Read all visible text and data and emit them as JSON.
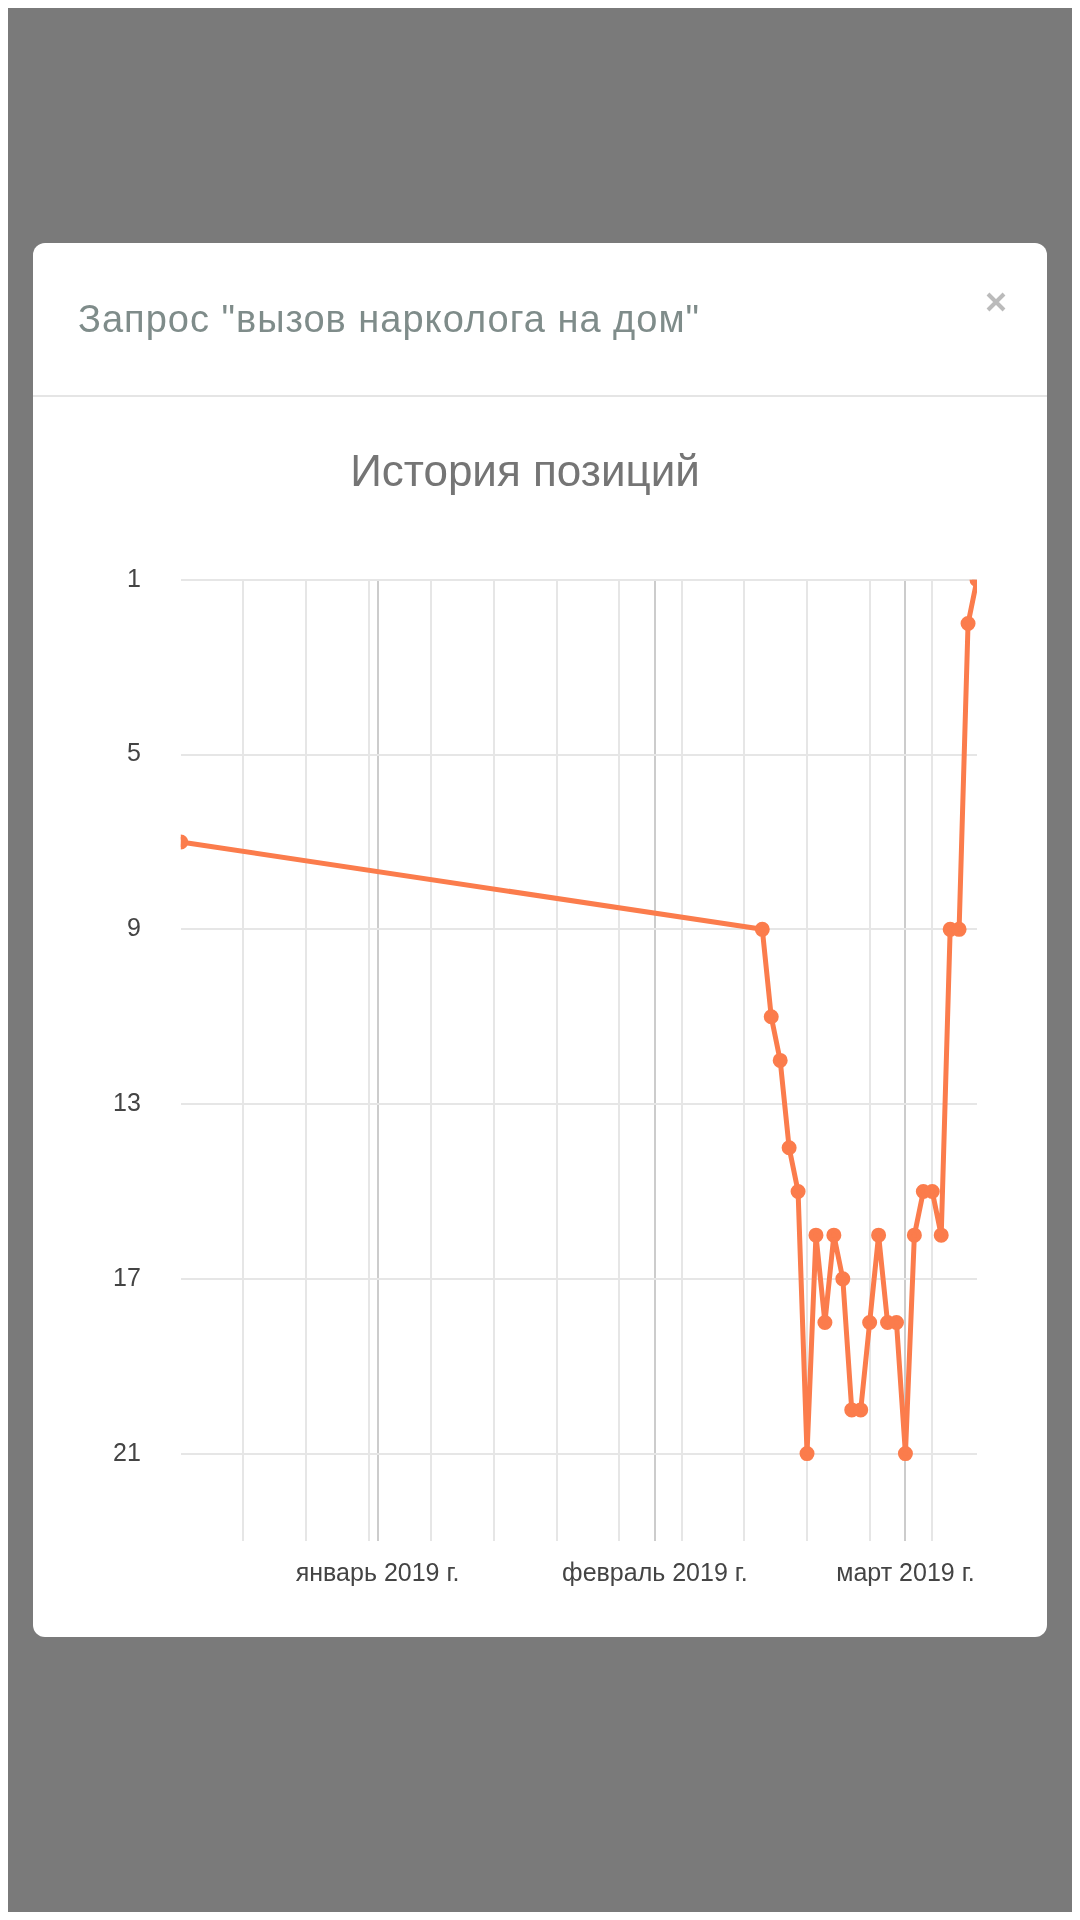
{
  "chart_data": {
    "type": "line",
    "title": "История позиций",
    "subtitle": "Запрос \"вызов нарколога на дом\"",
    "x": [
      "2018-12-10",
      "2019-02-13",
      "2019-02-14",
      "2019-02-15",
      "2019-02-16",
      "2019-02-17",
      "2019-02-18",
      "2019-02-19",
      "2019-02-20",
      "2019-02-21",
      "2019-02-22",
      "2019-02-23",
      "2019-02-24",
      "2019-02-25",
      "2019-02-26",
      "2019-02-27",
      "2019-02-28",
      "2019-03-01",
      "2019-03-02",
      "2019-03-03",
      "2019-03-04",
      "2019-03-05",
      "2019-03-06",
      "2019-03-07",
      "2019-03-08",
      "2019-03-09"
    ],
    "values": [
      7,
      9,
      11,
      12,
      14,
      15,
      21,
      16,
      18,
      16,
      17,
      20,
      20,
      18,
      16,
      18,
      18,
      21,
      16,
      15,
      15,
      16,
      9,
      9,
      2,
      1
    ],
    "color": "#fb7c4c",
    "marker": "circle",
    "line_style": "solid",
    "xlim": [
      "2018-12-10",
      "2019-03-09"
    ],
    "xticks": [
      {
        "value": "2018-12-17",
        "label": null
      },
      {
        "value": "2018-12-24",
        "label": null
      },
      {
        "value": "2018-12-31",
        "label": null
      },
      {
        "value": "2019-01-01",
        "label": "январь 2019 г."
      },
      {
        "value": "2019-01-07",
        "label": null
      },
      {
        "value": "2019-01-14",
        "label": null
      },
      {
        "value": "2019-01-21",
        "label": null
      },
      {
        "value": "2019-01-28",
        "label": null
      },
      {
        "value": "2019-02-01",
        "label": "февраль 2019 г."
      },
      {
        "value": "2019-02-04",
        "label": null
      },
      {
        "value": "2019-02-11",
        "label": null
      },
      {
        "value": "2019-02-18",
        "label": null
      },
      {
        "value": "2019-02-25",
        "label": null
      },
      {
        "value": "2019-03-01",
        "label": "март 2019 г."
      },
      {
        "value": "2019-03-04",
        "label": null
      }
    ],
    "ylim": [
      23,
      1
    ],
    "yticks": [
      1,
      5,
      9,
      13,
      17,
      21
    ],
    "grid": true
  }
}
